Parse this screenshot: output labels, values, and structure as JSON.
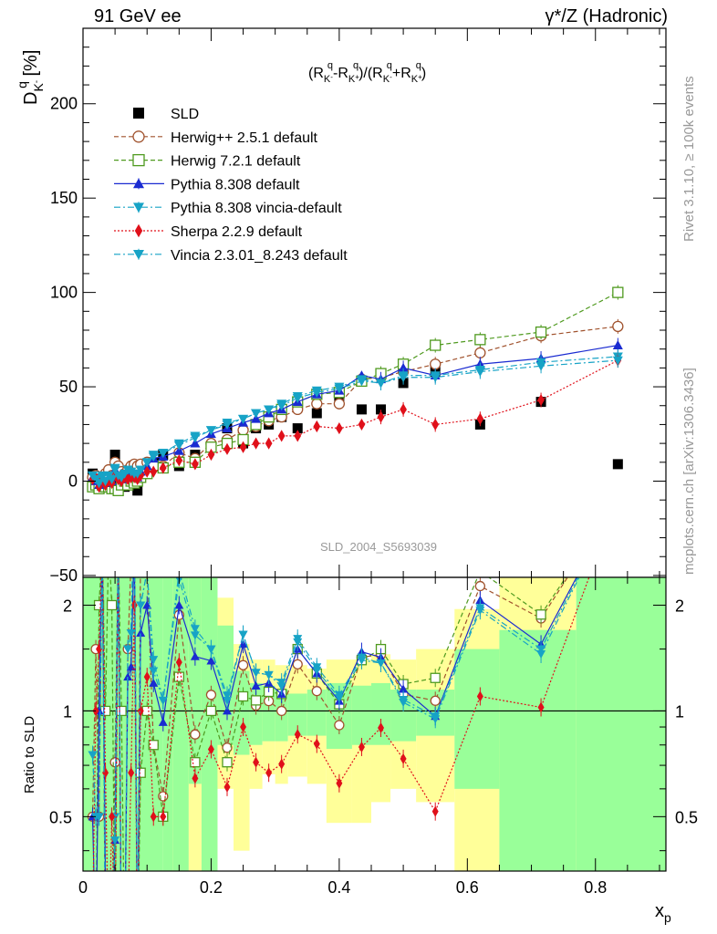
{
  "header": {
    "left": "91 GeV ee",
    "right": "γ*/Z (Hadronic)"
  },
  "side": {
    "rivet": "Rivet 3.1.10, ≥ 100k events",
    "source": "mcplots.cern.ch [arXiv:1306.3436]"
  },
  "chart_data": [
    {
      "type": "scatter",
      "title": "(R^q_K- - R^q_K+)/(R^q_K- + R^q_K+)",
      "ylabel": "D^q_K- [%]",
      "xlabel": "x_p",
      "xlim": [
        0,
        0.91
      ],
      "ylim": [
        -51,
        240
      ],
      "yticks": [
        -50,
        0,
        50,
        100,
        150,
        200
      ],
      "analysis_label": "SLD_2004_S5693039",
      "legend": {
        "placement": "top-left"
      },
      "series": [
        {
          "name": "SLD",
          "color": "#000000",
          "marker": "square-filled",
          "line": "none",
          "x": [
            0.015,
            0.02,
            0.025,
            0.03,
            0.035,
            0.04,
            0.045,
            0.05,
            0.055,
            0.06,
            0.065,
            0.07,
            0.075,
            0.08,
            0.085,
            0.09,
            0.1,
            0.11,
            0.125,
            0.15,
            0.175,
            0.2,
            0.225,
            0.25,
            0.27,
            0.29,
            0.31,
            0.335,
            0.365,
            0.4,
            0.435,
            0.465,
            0.5,
            0.55,
            0.62,
            0.715,
            0.835
          ],
          "y": [
            4,
            2,
            -2,
            0,
            -3,
            -1,
            -2,
            14,
            0,
            -2,
            -3,
            4,
            3,
            1,
            -5,
            3,
            4,
            10,
            14,
            8,
            14,
            18,
            28,
            20,
            28,
            30,
            34,
            28,
            36,
            45,
            38,
            38,
            52,
            58,
            30,
            42,
            9
          ]
        },
        {
          "name": "Herwig++ 2.5.1 default",
          "color": "#a0522d",
          "marker": "circle-open",
          "line": "dashed",
          "x": [
            0.015,
            0.02,
            0.025,
            0.03,
            0.035,
            0.04,
            0.045,
            0.05,
            0.055,
            0.06,
            0.065,
            0.07,
            0.075,
            0.08,
            0.085,
            0.09,
            0.1,
            0.11,
            0.125,
            0.15,
            0.175,
            0.2,
            0.225,
            0.25,
            0.27,
            0.29,
            0.31,
            0.335,
            0.365,
            0.4,
            0.435,
            0.465,
            0.5,
            0.55,
            0.62,
            0.715,
            0.835
          ],
          "y": [
            2,
            3,
            -1,
            2,
            4,
            6,
            3,
            10,
            8,
            5,
            4,
            6,
            8,
            9,
            8,
            9,
            10,
            8,
            8,
            15,
            12,
            20,
            22,
            27,
            29,
            32,
            34,
            38,
            41,
            41,
            54,
            55,
            58,
            62,
            68,
            77,
            82
          ]
        },
        {
          "name": "Herwig 7.2.1 default",
          "color": "#4f9a1f",
          "marker": "square-open",
          "line": "dashed",
          "x": [
            0.015,
            0.02,
            0.025,
            0.03,
            0.035,
            0.04,
            0.045,
            0.05,
            0.055,
            0.06,
            0.065,
            0.07,
            0.075,
            0.08,
            0.085,
            0.09,
            0.1,
            0.11,
            0.125,
            0.15,
            0.175,
            0.2,
            0.225,
            0.25,
            0.27,
            0.29,
            0.31,
            0.335,
            0.365,
            0.4,
            0.435,
            0.465,
            0.5,
            0.55,
            0.62,
            0.715,
            0.835
          ],
          "y": [
            -3,
            -2,
            -4,
            -2,
            -3,
            -3,
            -4,
            -4,
            -5,
            -2,
            0,
            -2,
            0,
            -1,
            0,
            2,
            4,
            8,
            7,
            10,
            10,
            18,
            20,
            22,
            30,
            34,
            38,
            42,
            46,
            47,
            53,
            57,
            62,
            72,
            75,
            79,
            100
          ]
        },
        {
          "name": "Pythia 8.308 default",
          "color": "#1a2bd1",
          "marker": "triangle-up-filled",
          "line": "solid",
          "x": [
            0.015,
            0.02,
            0.025,
            0.03,
            0.035,
            0.04,
            0.045,
            0.05,
            0.055,
            0.06,
            0.065,
            0.07,
            0.075,
            0.08,
            0.085,
            0.09,
            0.1,
            0.11,
            0.125,
            0.15,
            0.175,
            0.2,
            0.225,
            0.25,
            0.27,
            0.29,
            0.31,
            0.335,
            0.365,
            0.4,
            0.435,
            0.465,
            0.5,
            0.55,
            0.62,
            0.715,
            0.835
          ],
          "y": [
            2,
            0,
            -2,
            2,
            -1,
            2,
            0,
            6,
            2,
            1,
            3,
            5,
            4,
            3,
            2,
            5,
            8,
            12,
            13,
            16,
            20,
            25,
            28,
            31,
            33,
            36,
            38,
            42,
            46,
            48,
            56,
            54,
            60,
            56,
            62,
            65,
            72
          ]
        },
        {
          "name": "Pythia 8.308 vincia-default",
          "color": "#17a3c6",
          "marker": "triangle-down-filled",
          "line": "dashdot",
          "x": [
            0.015,
            0.02,
            0.025,
            0.03,
            0.035,
            0.04,
            0.045,
            0.05,
            0.055,
            0.06,
            0.065,
            0.07,
            0.075,
            0.08,
            0.085,
            0.09,
            0.1,
            0.11,
            0.125,
            0.15,
            0.175,
            0.2,
            0.225,
            0.25,
            0.27,
            0.29,
            0.31,
            0.335,
            0.365,
            0.4,
            0.435,
            0.465,
            0.5,
            0.55,
            0.62,
            0.715,
            0.835
          ],
          "y": [
            3,
            1,
            -1,
            3,
            0,
            3,
            1,
            7,
            3,
            2,
            4,
            6,
            5,
            4,
            4,
            6,
            10,
            14,
            15,
            20,
            24,
            27,
            31,
            33,
            36,
            38,
            41,
            45,
            48,
            50,
            54,
            52,
            56,
            56,
            59,
            63,
            66
          ]
        },
        {
          "name": "Sherpa 2.2.9 default",
          "color": "#e0101a",
          "marker": "diamond-filled",
          "line": "dotted",
          "x": [
            0.015,
            0.02,
            0.025,
            0.03,
            0.035,
            0.04,
            0.045,
            0.05,
            0.055,
            0.06,
            0.065,
            0.07,
            0.075,
            0.08,
            0.085,
            0.09,
            0.1,
            0.11,
            0.125,
            0.15,
            0.175,
            0.2,
            0.225,
            0.25,
            0.27,
            0.29,
            0.31,
            0.335,
            0.365,
            0.4,
            0.435,
            0.465,
            0.5,
            0.55,
            0.62,
            0.715,
            0.835
          ],
          "y": [
            1,
            2,
            -3,
            1,
            -2,
            0,
            -1,
            3,
            1,
            0,
            2,
            1,
            2,
            2,
            1,
            3,
            5,
            5,
            7,
            11,
            9,
            14,
            17,
            18,
            20,
            20,
            24,
            24,
            29,
            28,
            30,
            34,
            38,
            30,
            33,
            43,
            64
          ]
        },
        {
          "name": "Vincia 2.3.01_8.243 default",
          "color": "#17a3c6",
          "marker": "triangle-down-filled",
          "line": "dashdot",
          "x": [
            0.015,
            0.02,
            0.025,
            0.03,
            0.035,
            0.04,
            0.045,
            0.05,
            0.055,
            0.06,
            0.065,
            0.07,
            0.075,
            0.08,
            0.085,
            0.09,
            0.1,
            0.11,
            0.125,
            0.15,
            0.175,
            0.2,
            0.225,
            0.25,
            0.27,
            0.29,
            0.31,
            0.335,
            0.365,
            0.4,
            0.435,
            0.465,
            0.5,
            0.55,
            0.62,
            0.715,
            0.835
          ],
          "y": [
            3,
            1,
            -1,
            2,
            0,
            3,
            1,
            6,
            3,
            2,
            4,
            6,
            5,
            4,
            4,
            6,
            10,
            13,
            15,
            19,
            23,
            27,
            30,
            33,
            36,
            38,
            40,
            44,
            47,
            49,
            53,
            52,
            55,
            55,
            58,
            61,
            64
          ]
        }
      ]
    },
    {
      "type": "scatter",
      "ylabel": "Ratio to SLD",
      "xlabel": "x_p",
      "xlim": [
        0,
        0.91
      ],
      "ylim": [
        0.35,
        2.4
      ],
      "yscale": "log",
      "yticks": [
        0.5,
        1,
        2
      ],
      "xticks": [
        0,
        0.2,
        0.4,
        0.6,
        0.8
      ],
      "reference": 1,
      "bands": [
        {
          "x0": 0.125,
          "x1": 0.14,
          "y1lo": 0.35,
          "y1hi": 2.4,
          "y2lo": 0.35,
          "y2hi": 2.4
        },
        {
          "x0": 0.14,
          "x1": 0.165,
          "y1lo": 0.35,
          "y1hi": 2.4,
          "y2lo": 0.35,
          "y2hi": 2.4
        },
        {
          "x0": 0.165,
          "x1": 0.185,
          "y1lo": 0.62,
          "y1hi": 2.4,
          "y2lo": 0.35,
          "y2hi": 2.4
        },
        {
          "x0": 0.185,
          "x1": 0.21,
          "y1lo": 0.35,
          "y1hi": 2.4,
          "y2lo": 0.35,
          "y2hi": 2.4
        },
        {
          "x0": 0.21,
          "x1": 0.235,
          "y1lo": 0.8,
          "y1hi": 1.75,
          "y2lo": 0.6,
          "y2hi": 2.1
        },
        {
          "x0": 0.235,
          "x1": 0.26,
          "y1lo": 0.75,
          "y1hi": 1.3,
          "y2lo": 0.4,
          "y2hi": 1.55
        },
        {
          "x0": 0.26,
          "x1": 0.28,
          "y1lo": 0.8,
          "y1hi": 1.2,
          "y2lo": 0.6,
          "y2hi": 1.4
        },
        {
          "x0": 0.28,
          "x1": 0.3,
          "y1lo": 0.82,
          "y1hi": 1.18,
          "y2lo": 0.66,
          "y2hi": 1.4
        },
        {
          "x0": 0.3,
          "x1": 0.32,
          "y1lo": 0.82,
          "y1hi": 1.15,
          "y2lo": 0.62,
          "y2hi": 1.35
        },
        {
          "x0": 0.32,
          "x1": 0.35,
          "y1lo": 0.85,
          "y1hi": 1.12,
          "y2lo": 0.65,
          "y2hi": 1.35
        },
        {
          "x0": 0.35,
          "x1": 0.38,
          "y1lo": 0.85,
          "y1hi": 1.15,
          "y2lo": 0.62,
          "y2hi": 1.32
        },
        {
          "x0": 0.38,
          "x1": 0.42,
          "y1lo": 0.78,
          "y1hi": 1.2,
          "y2lo": 0.48,
          "y2hi": 1.4
        },
        {
          "x0": 0.42,
          "x1": 0.45,
          "y1lo": 0.8,
          "y1hi": 1.18,
          "y2lo": 0.48,
          "y2hi": 1.4
        },
        {
          "x0": 0.45,
          "x1": 0.48,
          "y1lo": 0.8,
          "y1hi": 1.2,
          "y2lo": 0.55,
          "y2hi": 1.45
        },
        {
          "x0": 0.48,
          "x1": 0.52,
          "y1lo": 0.82,
          "y1hi": 1.15,
          "y2lo": 0.6,
          "y2hi": 1.4
        },
        {
          "x0": 0.52,
          "x1": 0.58,
          "y1lo": 0.85,
          "y1hi": 1.15,
          "y2lo": 0.55,
          "y2hi": 1.5
        },
        {
          "x0": 0.58,
          "x1": 0.65,
          "y1lo": 0.6,
          "y1hi": 1.5,
          "y2lo": 0.35,
          "y2hi": 1.95
        },
        {
          "x0": 0.65,
          "x1": 0.77,
          "y1lo": 0.35,
          "y1hi": 1.7,
          "y2lo": 0.35,
          "y2hi": 2.4
        },
        {
          "x0": 0.77,
          "x1": 0.91,
          "y1lo": 0.35,
          "y1hi": 2.4,
          "y2lo": 0.35,
          "y2hi": 2.4
        }
      ]
    }
  ]
}
